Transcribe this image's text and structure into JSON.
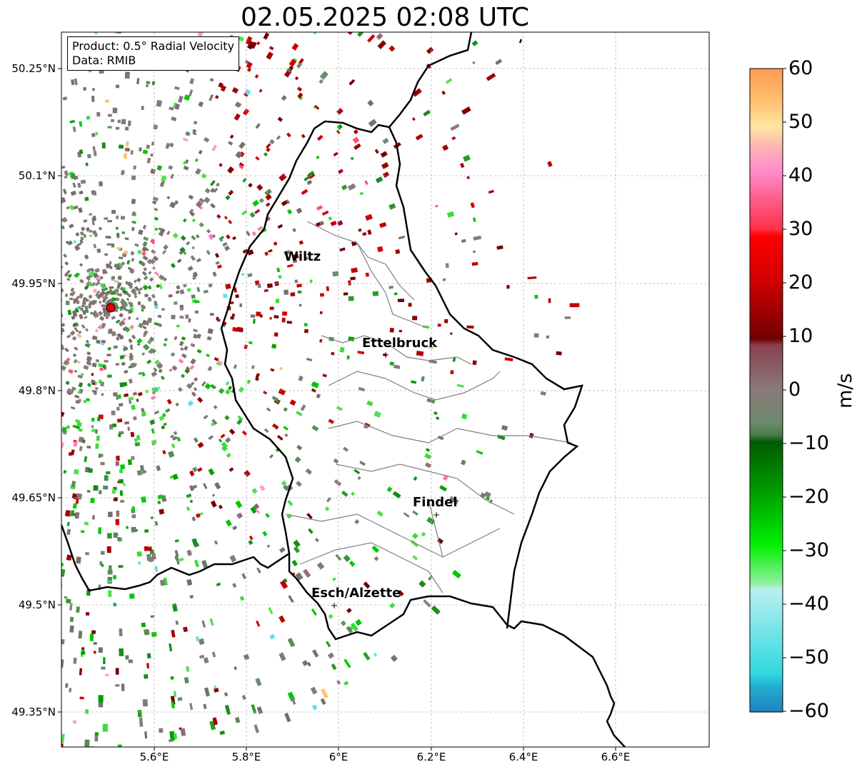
{
  "title": "02.05.2025 02:08 UTC",
  "info": {
    "product_line": "Product: 0.5° Radial Velocity",
    "data_line": "Data: RMIB"
  },
  "axes": {
    "y_ticks": [
      "50.25°N",
      "50.1°N",
      "49.95°N",
      "49.8°N",
      "49.65°N",
      "49.5°N",
      "49.35°N"
    ],
    "x_ticks": [
      "5.6°E",
      "5.8°E",
      "6°E",
      "6.2°E",
      "6.4°E",
      "6.6°E"
    ]
  },
  "cities": [
    {
      "name": "Wiltz"
    },
    {
      "name": "Ettelbruck"
    },
    {
      "name": "Findel"
    },
    {
      "name": "Esch/Alzette"
    }
  ],
  "colorbar": {
    "label": "m/s",
    "ticks": [
      "60",
      "50",
      "40",
      "30",
      "20",
      "10",
      "0",
      "−10",
      "−20",
      "−30",
      "−40",
      "−50",
      "−60"
    ],
    "range": [
      -60,
      60
    ]
  },
  "colors": {
    "radar_marker": "#e00000",
    "border": "#000000",
    "canton_lines": "#808080",
    "grid": "#b0b0b0"
  }
}
